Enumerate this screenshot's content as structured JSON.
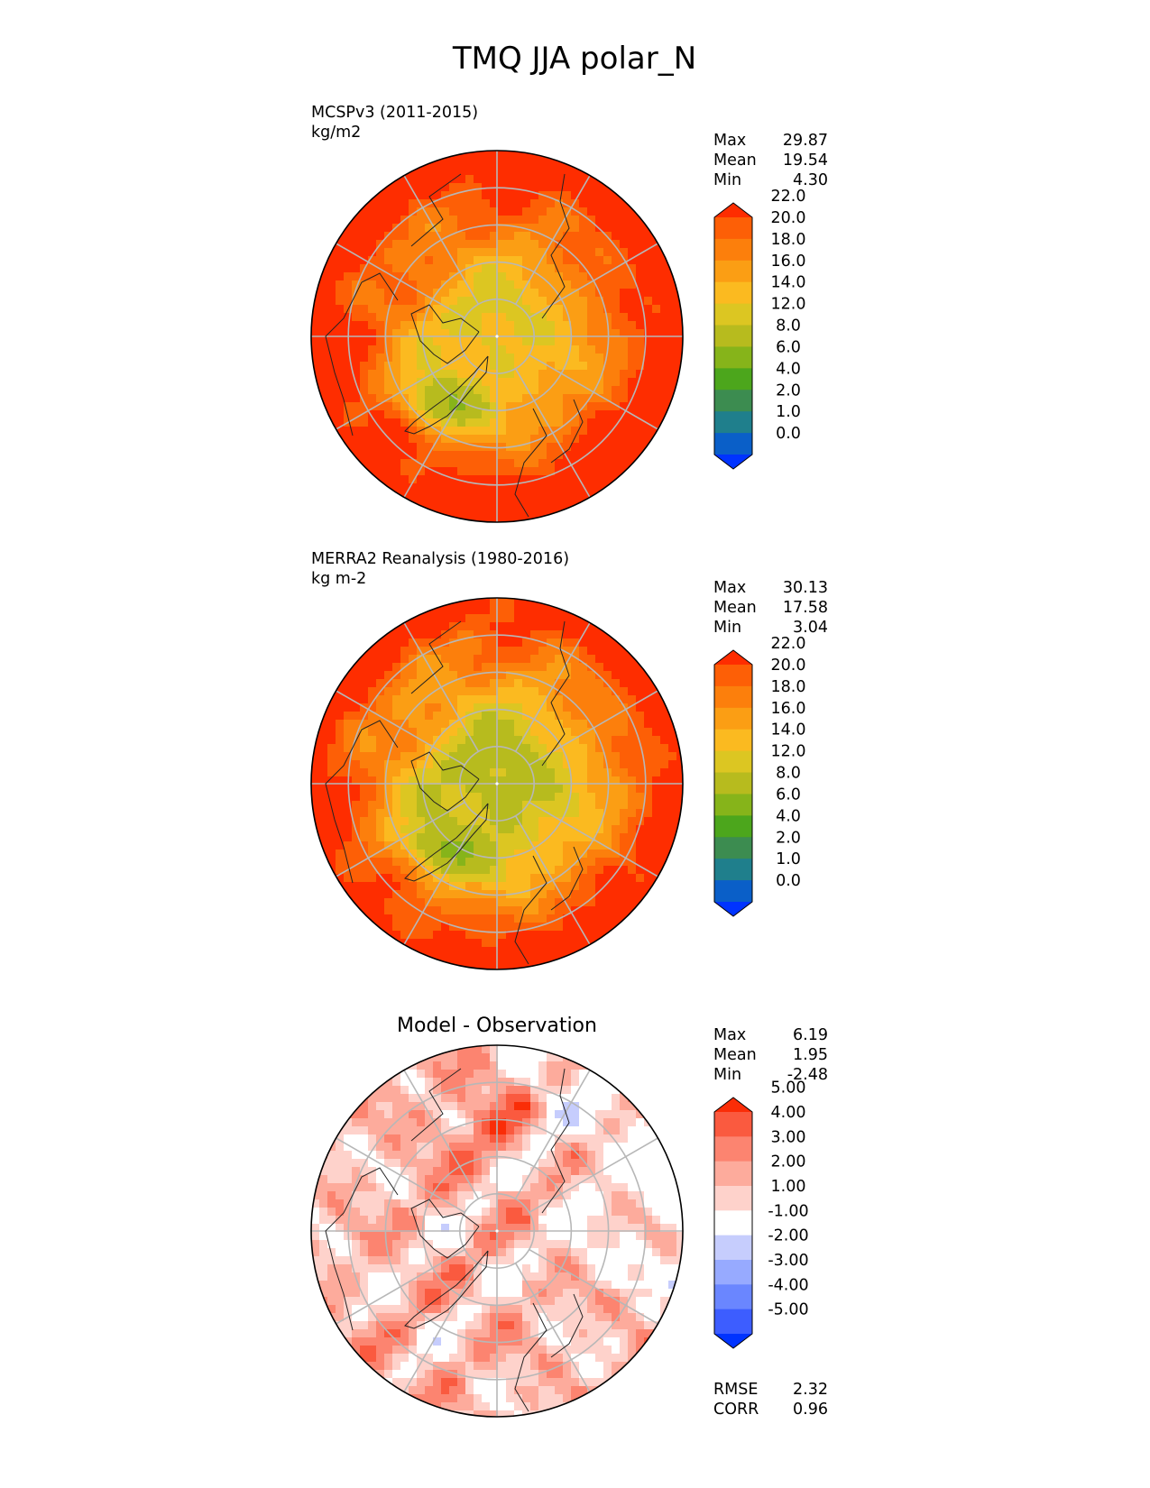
{
  "title": "TMQ JJA polar_N",
  "palettes": {
    "tmq": [
      "#0033ff",
      "#0a5fc8",
      "#1f7f8c",
      "#3c8c50",
      "#4ca61c",
      "#86b41a",
      "#b7bb1e",
      "#dcc622",
      "#fbba20",
      "#fb9e14",
      "#fc7f0c",
      "#fd5f06",
      "#fe2d00"
    ],
    "diff": [
      "#0033ff",
      "#3d5dff",
      "#6a86ff",
      "#97aaff",
      "#c6cdfd",
      "#ffffff",
      "#fed2cb",
      "#fdab9c",
      "#fc8470",
      "#fa5a3f",
      "#fa2d07"
    ]
  },
  "chart_data": [
    {
      "type": "contour-map",
      "projection": "polar_N",
      "title": "MCSPv3 (2011-2015)",
      "units": "kg/m2",
      "stats": [
        {
          "label": "Max",
          "value": "29.87"
        },
        {
          "label": "Mean",
          "value": "19.54"
        },
        {
          "label": "Min",
          "value": "4.30"
        }
      ],
      "colorbar": {
        "levels": [
          "0.0",
          "1.0",
          "2.0",
          "4.0",
          "6.0",
          "8.0",
          "12.0",
          "14.0",
          "16.0",
          "18.0",
          "20.0",
          "22.0"
        ],
        "extend": "both"
      },
      "field": {
        "pole": 12.5,
        "edge": 26,
        "greenland_min": 5.5
      }
    },
    {
      "type": "contour-map",
      "projection": "polar_N",
      "title": "MERRA2 Reanalysis (1980-2016)",
      "units": "kg m-2",
      "stats": [
        {
          "label": "Max",
          "value": "30.13"
        },
        {
          "label": "Mean",
          "value": "17.58"
        },
        {
          "label": "Min",
          "value": "3.04"
        }
      ],
      "colorbar": {
        "levels": [
          "0.0",
          "1.0",
          "2.0",
          "4.0",
          "6.0",
          "8.0",
          "12.0",
          "14.0",
          "16.0",
          "18.0",
          "20.0",
          "22.0"
        ],
        "extend": "both"
      },
      "field": {
        "pole": 10.0,
        "edge": 25,
        "greenland_min": 4.0
      }
    },
    {
      "type": "contour-map",
      "projection": "polar_N",
      "title": "Model - Observation",
      "units": "",
      "stats": [
        {
          "label": "Max",
          "value": "6.19"
        },
        {
          "label": "Mean",
          "value": "1.95"
        },
        {
          "label": "Min",
          "value": "-2.48"
        }
      ],
      "colorbar": {
        "levels": [
          "-5.00",
          "-4.00",
          "-3.00",
          "-2.00",
          "-1.00",
          "1.00",
          "2.00",
          "3.00",
          "4.00",
          "5.00"
        ],
        "extend": "both"
      },
      "metrics": [
        {
          "label": "RMSE",
          "value": "2.32"
        },
        {
          "label": "CORR",
          "value": "0.96"
        }
      ],
      "field": {
        "mean": 1.95,
        "max": 6.19,
        "min": -2.48
      }
    }
  ]
}
